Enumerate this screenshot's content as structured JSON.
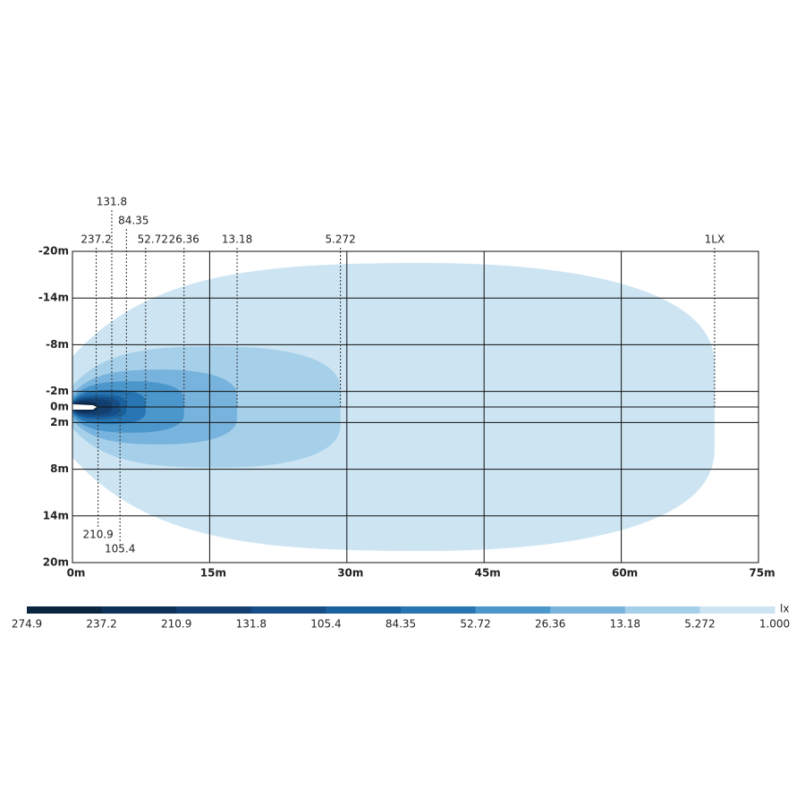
{
  "chart_data": {
    "type": "isolux",
    "xlim": [
      0,
      75
    ],
    "ylim": [
      -20,
      20
    ],
    "xticks": [
      {
        "value": 0,
        "label": "0m"
      },
      {
        "value": 15,
        "label": "15m"
      },
      {
        "value": 30,
        "label": "30m"
      },
      {
        "value": 45,
        "label": "45m"
      },
      {
        "value": 60,
        "label": "60m"
      },
      {
        "value": 75,
        "label": "75m"
      }
    ],
    "yticks": [
      {
        "value": -20,
        "label": "-20m"
      },
      {
        "value": -14,
        "label": "-14m"
      },
      {
        "value": -8,
        "label": "-8m"
      },
      {
        "value": -2,
        "label": "-2m"
      },
      {
        "value": 0,
        "label": "0m"
      },
      {
        "value": 2,
        "label": "2m"
      },
      {
        "value": 8,
        "label": "8m"
      },
      {
        "value": 14,
        "label": "14m"
      },
      {
        "value": 20,
        "label": "20m"
      }
    ],
    "grid": true,
    "contours": [
      {
        "level": 237.2,
        "reach": 2.6,
        "half_width": 0.5,
        "color": "#0b2440"
      },
      {
        "level": 210.9,
        "reach": 2.8,
        "half_width": 0.7,
        "color": "#0e3158"
      },
      {
        "level": 131.8,
        "reach": 4.3,
        "half_width": 1.0,
        "color": "#123f70"
      },
      {
        "level": 105.4,
        "reach": 5.2,
        "half_width": 1.3,
        "color": "#164f88"
      },
      {
        "level": 84.35,
        "reach": 5.9,
        "half_width": 1.6,
        "color": "#1b619e"
      },
      {
        "level": 52.72,
        "reach": 8.0,
        "half_width": 2.2,
        "color": "#2775b2"
      },
      {
        "level": 26.36,
        "reach": 12.2,
        "half_width": 3.3,
        "color": "#4b97cc"
      },
      {
        "level": 13.18,
        "reach": 18.0,
        "half_width": 4.8,
        "color": "#78b3dd"
      },
      {
        "level": 5.272,
        "reach": 29.3,
        "half_width": 7.8,
        "color": "#a6d0ea"
      },
      {
        "level": {
          "value": 1,
          "label": "1LX"
        },
        "reach": 70.2,
        "half_width": 18.5,
        "color": "#cde5f3"
      }
    ],
    "colorbar": {
      "unit": "lx",
      "ticks": [
        274.9,
        237.2,
        210.9,
        131.8,
        105.4,
        84.35,
        52.72,
        26.36,
        13.18,
        5.272,
        {
          "value": 1,
          "label": "1.000"
        }
      ],
      "colors": [
        "#0b2440",
        "#0e3158",
        "#123f70",
        "#164f88",
        "#1b619e",
        "#2775b2",
        "#4b97cc",
        "#78b3dd",
        "#a6d0ea",
        "#cde5f3"
      ]
    }
  }
}
